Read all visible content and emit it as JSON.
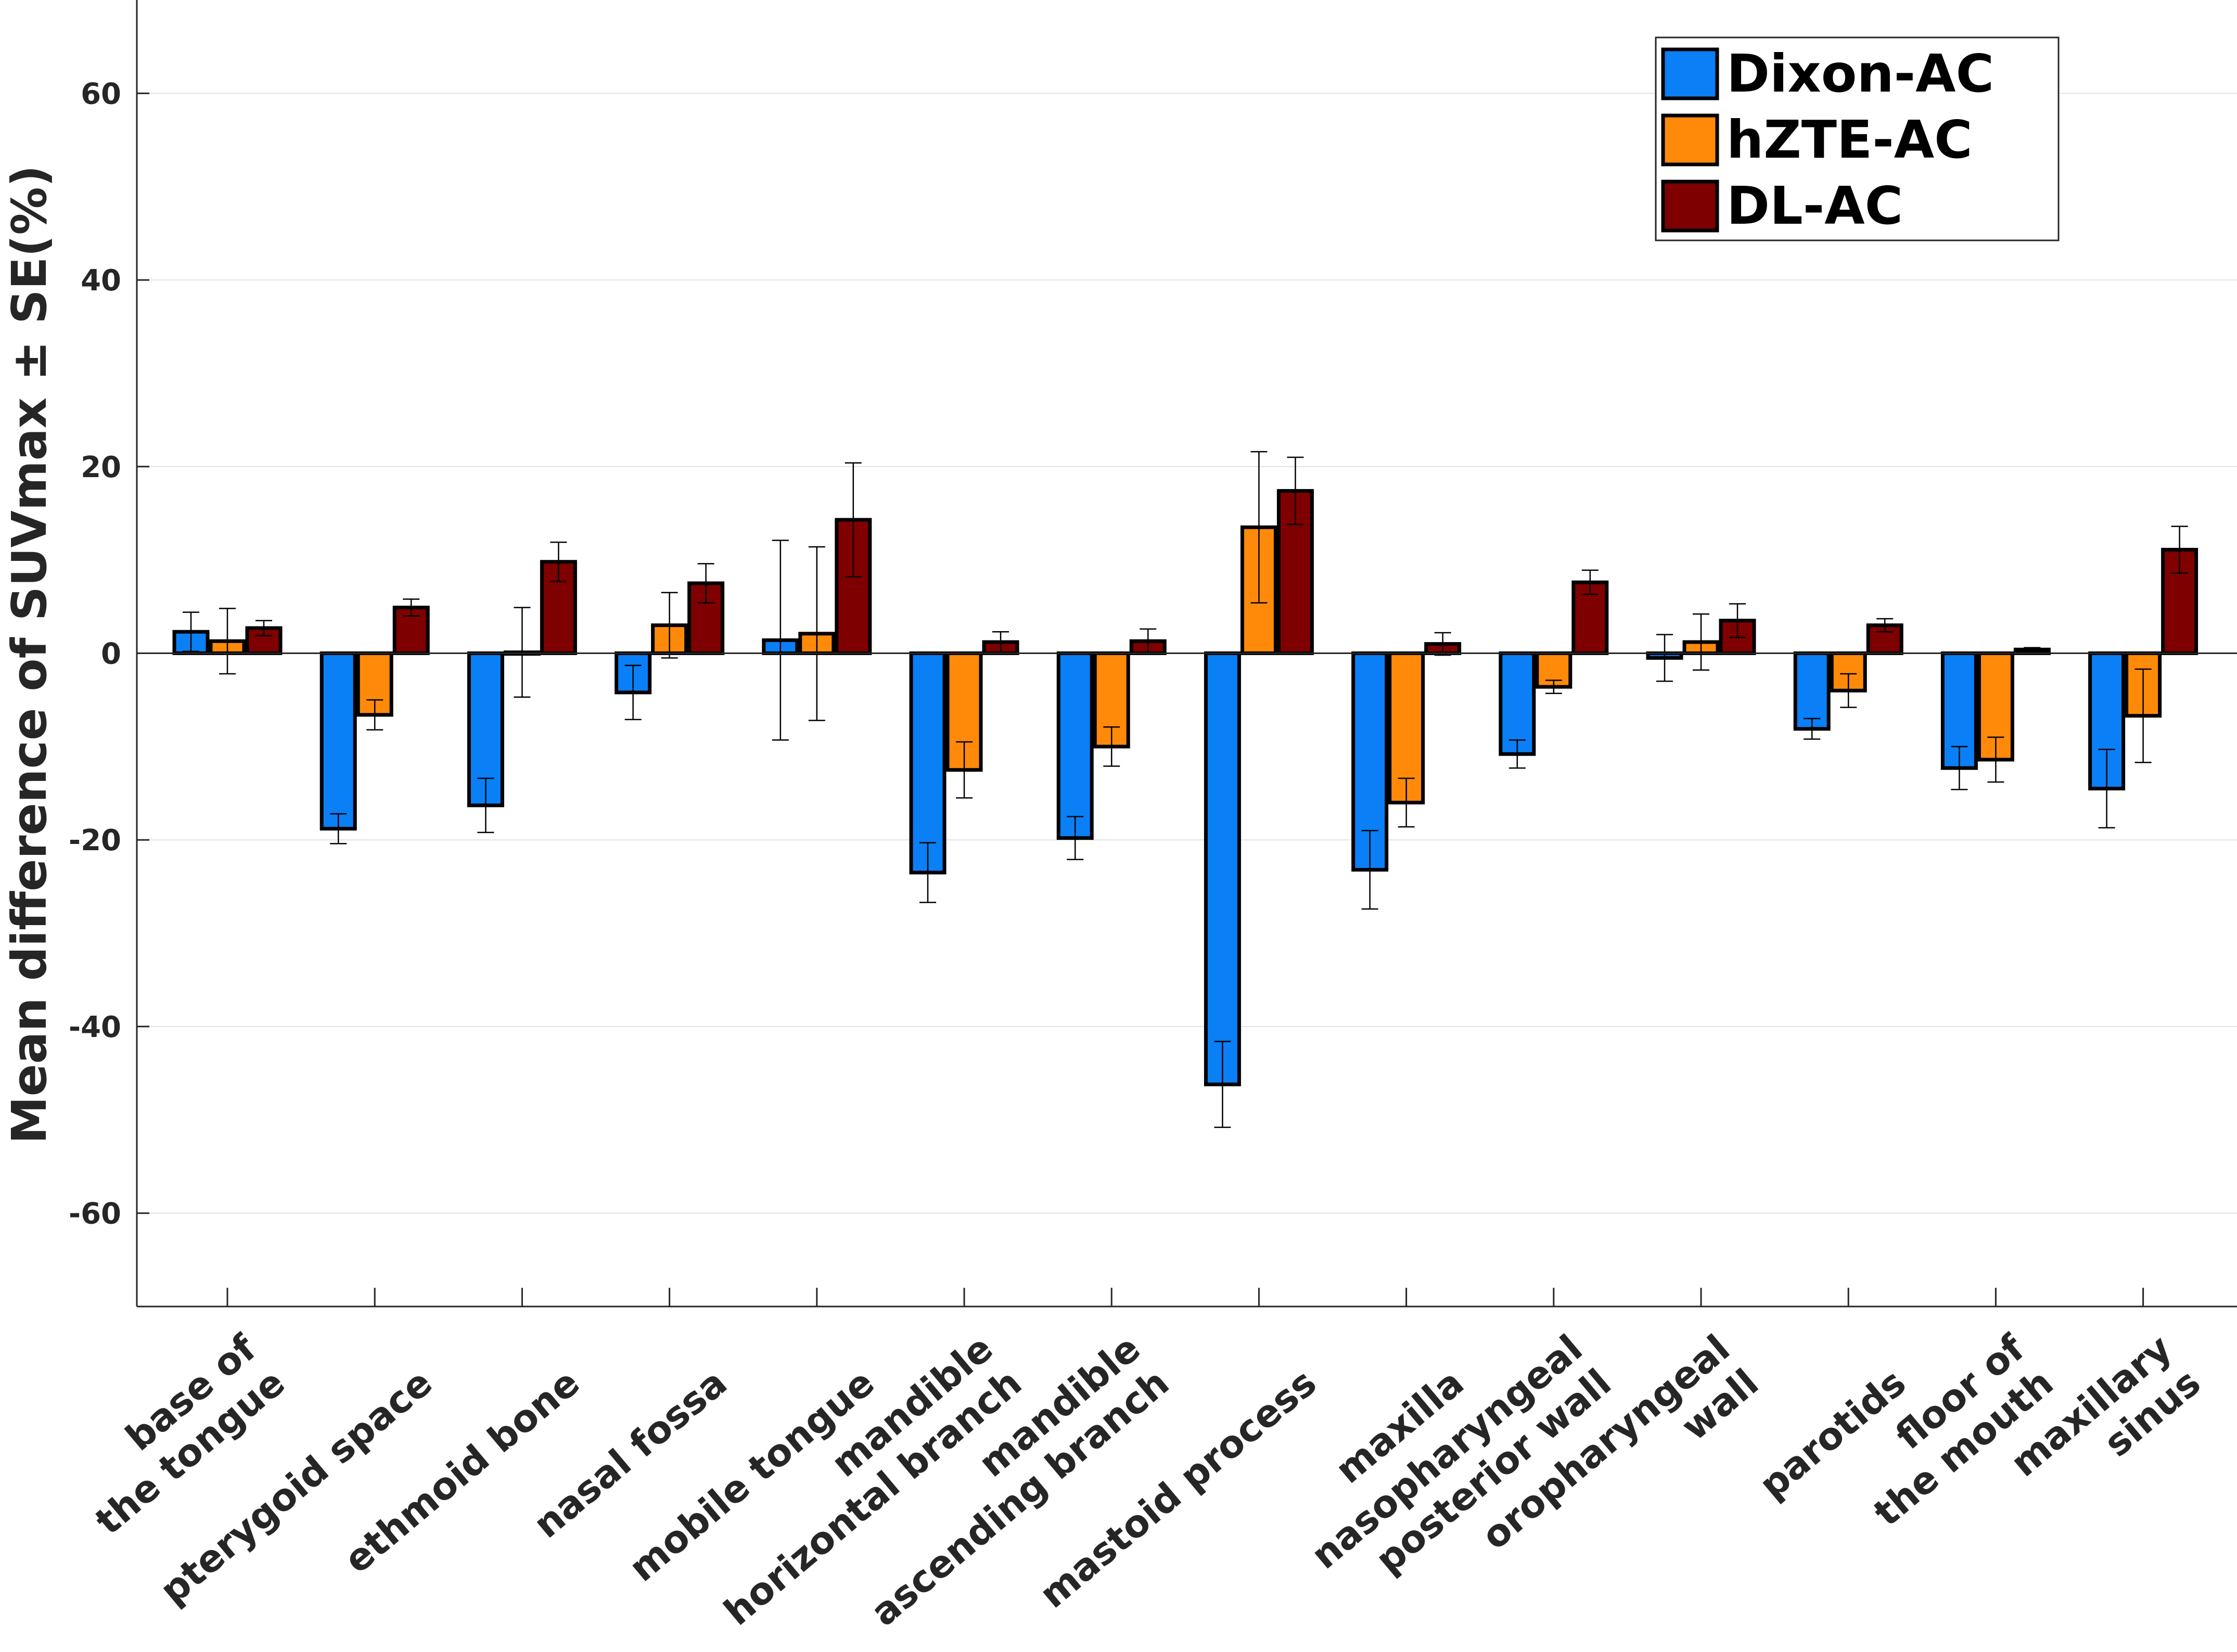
{
  "chart_data": {
    "type": "bar",
    "title": "",
    "xlabel": "",
    "ylabel": "Mean difference of SUVmax ± SE(%)",
    "ylim": [
      -70,
      70
    ],
    "yticks": [
      -60,
      -40,
      -20,
      0,
      20,
      40,
      60
    ],
    "grid": true,
    "legend_position": "top-right",
    "categories": [
      [
        "base of",
        "the tongue"
      ],
      [
        "pterygoid space"
      ],
      [
        "ethmoid bone"
      ],
      [
        "nasal fossa"
      ],
      [
        "mobile tongue"
      ],
      [
        "mandible",
        "horizontal branch"
      ],
      [
        "mandible",
        "ascending branch"
      ],
      [
        "mastoid process"
      ],
      [
        "maxilla"
      ],
      [
        "nasopharyngeal",
        "posterior wall"
      ],
      [
        "oropharyngeal",
        "wall"
      ],
      [
        "parotids"
      ],
      [
        "floor of",
        "the mouth"
      ],
      [
        "maxillary",
        "sinus"
      ]
    ],
    "series": [
      {
        "name": "Dixon-AC",
        "color": "#0a7ff6",
        "values": [
          2.3,
          -18.8,
          -16.3,
          -4.2,
          1.4,
          -23.5,
          -19.8,
          -46.2,
          -23.2,
          -10.8,
          -0.5,
          -8.1,
          -12.3,
          -14.5
        ],
        "errors": [
          2.1,
          1.6,
          2.9,
          2.9,
          10.7,
          3.2,
          2.3,
          4.6,
          4.2,
          1.5,
          2.5,
          1.1,
          2.3,
          4.2
        ]
      },
      {
        "name": "hZTE-AC",
        "color": "#ff8a0a",
        "values": [
          1.3,
          -6.6,
          0.1,
          3.0,
          2.1,
          -12.5,
          -10.0,
          13.5,
          -16.0,
          -3.6,
          1.2,
          -4.0,
          -11.4,
          -6.7
        ],
        "errors": [
          3.5,
          1.6,
          4.8,
          3.5,
          9.3,
          3.0,
          2.1,
          8.1,
          2.6,
          0.7,
          3.0,
          1.8,
          2.4,
          5.0
        ]
      },
      {
        "name": "DL-AC",
        "color": "#7f0000",
        "values": [
          2.7,
          4.9,
          9.8,
          7.5,
          14.3,
          1.2,
          1.3,
          17.4,
          1.0,
          7.6,
          3.5,
          3.0,
          0.4,
          11.1
        ],
        "errors": [
          0.8,
          0.9,
          2.1,
          2.1,
          6.1,
          1.1,
          1.3,
          3.6,
          1.2,
          1.3,
          1.8,
          0.7,
          0.2,
          2.5
        ]
      }
    ]
  }
}
